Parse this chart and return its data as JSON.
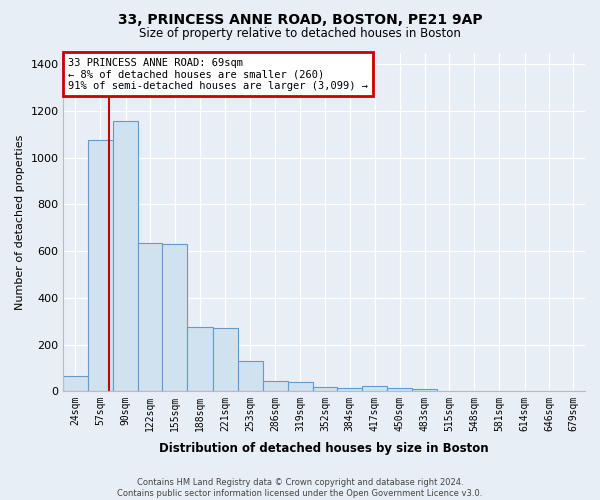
{
  "title": "33, PRINCESS ANNE ROAD, BOSTON, PE21 9AP",
  "subtitle": "Size of property relative to detached houses in Boston",
  "xlabel": "Distribution of detached houses by size in Boston",
  "ylabel": "Number of detached properties",
  "footnote1": "Contains HM Land Registry data © Crown copyright and database right 2024.",
  "footnote2": "Contains public sector information licensed under the Open Government Licence v3.0.",
  "annotation_line1": "33 PRINCESS ANNE ROAD: 69sqm",
  "annotation_line2": "← 8% of detached houses are smaller (260)",
  "annotation_line3": "91% of semi-detached houses are larger (3,099) →",
  "property_size_x": 69,
  "bar_fill_color": "#d0e2f0",
  "bar_edge_color": "#6699cc",
  "marker_color": "#cc0000",
  "bg_color": "#e8eef5",
  "grid_color": "#ffffff",
  "annotation_box_color": "white",
  "annotation_edge_color": "#cc0000",
  "categories": [
    "24sqm",
    "57sqm",
    "90sqm",
    "122sqm",
    "155sqm",
    "188sqm",
    "221sqm",
    "253sqm",
    "286sqm",
    "319sqm",
    "352sqm",
    "384sqm",
    "417sqm",
    "450sqm",
    "483sqm",
    "515sqm",
    "548sqm",
    "581sqm",
    "614sqm",
    "646sqm",
    "679sqm"
  ],
  "bin_edges": [
    8,
    41,
    74,
    107,
    139,
    172,
    205,
    238,
    271,
    304,
    337,
    369,
    402,
    435,
    468,
    500,
    533,
    566,
    599,
    632,
    664,
    695
  ],
  "values": [
    65,
    1075,
    1155,
    635,
    630,
    275,
    270,
    130,
    45,
    40,
    20,
    15,
    25,
    15,
    10,
    0,
    0,
    0,
    0,
    0,
    0
  ],
  "ylim": [
    0,
    1450
  ],
  "yticks": [
    0,
    200,
    400,
    600,
    800,
    1000,
    1200,
    1400
  ],
  "xlim": [
    8,
    695
  ]
}
